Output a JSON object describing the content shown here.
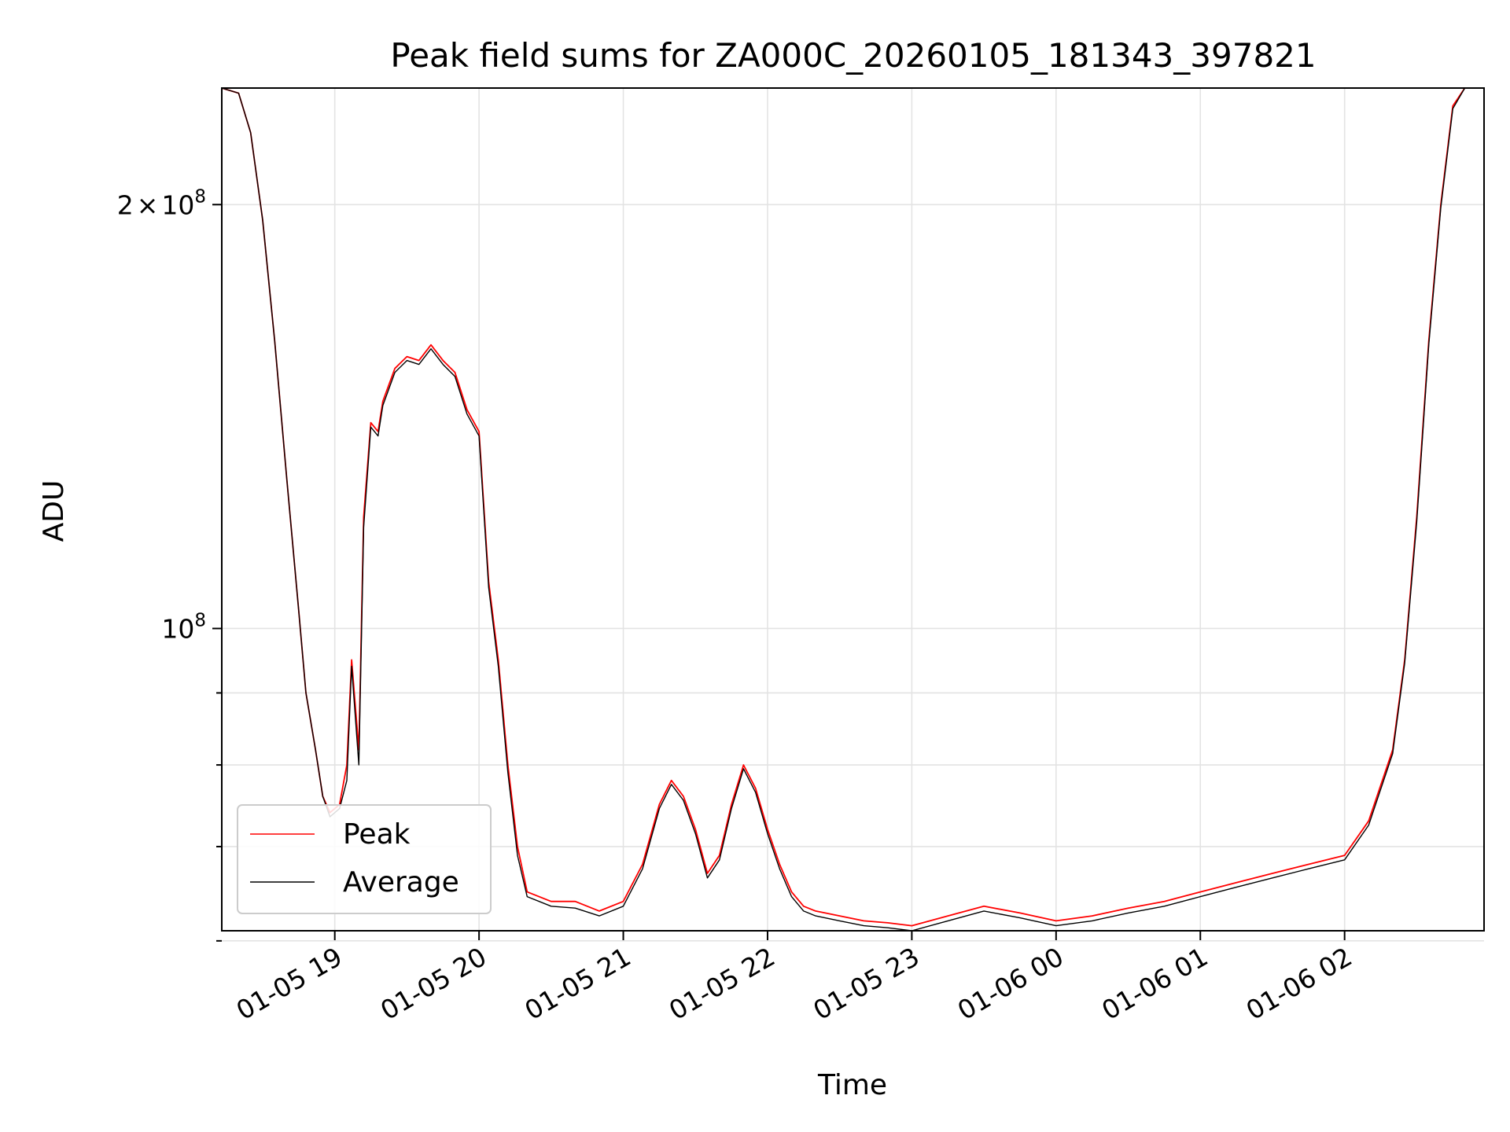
{
  "chart_data": {
    "type": "line",
    "title": "Peak field sums for ZA000C_20260105_181343_397821",
    "xlabel": "Time",
    "ylabel": "ADU",
    "yscale": "log",
    "grid": true,
    "legend_position": "lower-left",
    "xlim": [
      "2026-01-05 18:13",
      "2026-01-06 02:58"
    ],
    "ylim": [
      61000000,
      242000000
    ],
    "x_ticks": [
      {
        "value": "2026-01-05 19:00",
        "label": "01-05 19"
      },
      {
        "value": "2026-01-05 20:00",
        "label": "01-05 20"
      },
      {
        "value": "2026-01-05 21:00",
        "label": "01-05 21"
      },
      {
        "value": "2026-01-05 22:00",
        "label": "01-05 22"
      },
      {
        "value": "2026-01-05 23:00",
        "label": "01-05 23"
      },
      {
        "value": "2026-01-06 00:00",
        "label": "01-06 00"
      },
      {
        "value": "2026-01-06 01:00",
        "label": "01-06 01"
      },
      {
        "value": "2026-01-06 02:00",
        "label": "01-06 02"
      }
    ],
    "y_major_ticks": [
      {
        "value": 200000000,
        "mantissa": "2",
        "times": "×",
        "base": "10",
        "exponent": "8"
      },
      {
        "value": 100000000,
        "mantissa": "",
        "times": "",
        "base": "10",
        "exponent": "8"
      }
    ],
    "y_minor_ticks": [
      60000000,
      70000000,
      80000000,
      90000000
    ],
    "x": [
      "2026-01-05 18:13",
      "2026-01-05 18:20",
      "2026-01-05 18:25",
      "2026-01-05 18:30",
      "2026-01-05 18:35",
      "2026-01-05 18:40",
      "2026-01-05 18:45",
      "2026-01-05 18:48",
      "2026-01-05 18:52",
      "2026-01-05 18:55",
      "2026-01-05 18:58",
      "2026-01-05 19:02",
      "2026-01-05 19:05",
      "2026-01-05 19:07",
      "2026-01-05 19:10",
      "2026-01-05 19:12",
      "2026-01-05 19:15",
      "2026-01-05 19:18",
      "2026-01-05 19:20",
      "2026-01-05 19:25",
      "2026-01-05 19:30",
      "2026-01-05 19:35",
      "2026-01-05 19:40",
      "2026-01-05 19:45",
      "2026-01-05 19:50",
      "2026-01-05 19:55",
      "2026-01-05 20:00",
      "2026-01-05 20:04",
      "2026-01-05 20:08",
      "2026-01-05 20:12",
      "2026-01-05 20:16",
      "2026-01-05 20:20",
      "2026-01-05 20:30",
      "2026-01-05 20:40",
      "2026-01-05 20:50",
      "2026-01-05 21:00",
      "2026-01-05 21:08",
      "2026-01-05 21:15",
      "2026-01-05 21:20",
      "2026-01-05 21:25",
      "2026-01-05 21:30",
      "2026-01-05 21:35",
      "2026-01-05 21:40",
      "2026-01-05 21:45",
      "2026-01-05 21:50",
      "2026-01-05 21:55",
      "2026-01-05 22:00",
      "2026-01-05 22:05",
      "2026-01-05 22:10",
      "2026-01-05 22:15",
      "2026-01-05 22:20",
      "2026-01-05 22:30",
      "2026-01-05 22:40",
      "2026-01-05 22:50",
      "2026-01-05 23:00",
      "2026-01-05 23:15",
      "2026-01-05 23:30",
      "2026-01-05 23:45",
      "2026-01-06 00:00",
      "2026-01-06 00:15",
      "2026-01-06 00:30",
      "2026-01-06 00:45",
      "2026-01-06 01:00",
      "2026-01-06 01:15",
      "2026-01-06 01:30",
      "2026-01-06 01:45",
      "2026-01-06 02:00",
      "2026-01-06 02:10",
      "2026-01-06 02:20",
      "2026-01-06 02:25",
      "2026-01-06 02:30",
      "2026-01-06 02:35",
      "2026-01-06 02:40",
      "2026-01-06 02:45",
      "2026-01-06 02:50",
      "2026-01-06 02:58"
    ],
    "series": [
      {
        "name": "Peak",
        "color": "#ff0000",
        "values": [
          242000000,
          240000000,
          225000000,
          195000000,
          160000000,
          128000000,
          103000000,
          90000000,
          82000000,
          76000000,
          74000000,
          75000000,
          80000000,
          95000000,
          82000000,
          120000000,
          140000000,
          138000000,
          145000000,
          153000000,
          156000000,
          155000000,
          159000000,
          155000000,
          152000000,
          143000000,
          138000000,
          108000000,
          95000000,
          80000000,
          70000000,
          65000000,
          64000000,
          64000000,
          63000000,
          64000000,
          68000000,
          75000000,
          78000000,
          76000000,
          72000000,
          67000000,
          69000000,
          75000000,
          80000000,
          77000000,
          72000000,
          68000000,
          65000000,
          63500000,
          63000000,
          62500000,
          62000000,
          61800000,
          61500000,
          62500000,
          63500000,
          62800000,
          62000000,
          62500000,
          63300000,
          64000000,
          65000000,
          66000000,
          67000000,
          68000000,
          69000000,
          73000000,
          82000000,
          95000000,
          120000000,
          160000000,
          200000000,
          235000000,
          242000000,
          242000000
        ]
      },
      {
        "name": "Average",
        "color": "#000000",
        "values": [
          242000000,
          240000000,
          225000000,
          195000000,
          160000000,
          128000000,
          103000000,
          90000000,
          82000000,
          76000000,
          73500000,
          74500000,
          78000000,
          94000000,
          80000000,
          118000000,
          139000000,
          137000000,
          144000000,
          152000000,
          155000000,
          154000000,
          158000000,
          154000000,
          151000000,
          142000000,
          137000000,
          107000000,
          94000000,
          79000000,
          69000000,
          64500000,
          63500000,
          63300000,
          62500000,
          63500000,
          67500000,
          74500000,
          77500000,
          75500000,
          71500000,
          66500000,
          68500000,
          74500000,
          79500000,
          76500000,
          71500000,
          67500000,
          64500000,
          63000000,
          62500000,
          62000000,
          61500000,
          61300000,
          61000000,
          62000000,
          63000000,
          62300000,
          61500000,
          62000000,
          62800000,
          63500000,
          64500000,
          65500000,
          66500000,
          67500000,
          68500000,
          72500000,
          81500000,
          94500000,
          119000000,
          159000000,
          199000000,
          234000000,
          242000000,
          242000000
        ]
      }
    ]
  }
}
